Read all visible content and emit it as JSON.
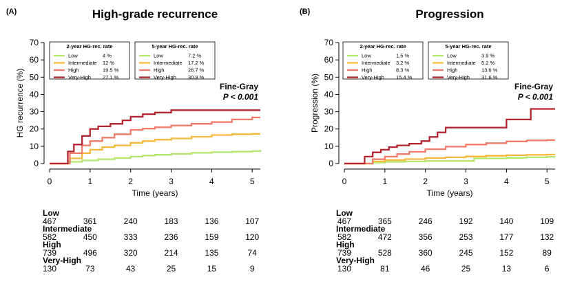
{
  "chart_data": [
    {
      "type": "line",
      "panel_label": "(A)",
      "title": "High-grade recurrence",
      "xlabel": "Time (years)",
      "ylabel": "HG recurrence (%)",
      "xlim": [
        0,
        5.2
      ],
      "ylim": [
        0,
        70
      ],
      "xticks": [
        "0",
        "1",
        "2",
        "3",
        "4",
        "5"
      ],
      "yticks": [
        "0",
        "10",
        "20",
        "30",
        "40",
        "50",
        "60",
        "70"
      ],
      "annotation": {
        "method": "Fine-Gray",
        "p_value": "P < 0.001"
      },
      "legends": [
        {
          "title": "2-year HG-rec. rate",
          "entries": [
            {
              "label": "Low",
              "value": "4 %"
            },
            {
              "label": "Intermediate",
              "value": "12 %"
            },
            {
              "label": "High",
              "value": "19.5 %"
            },
            {
              "label": "Very-High",
              "value": "27.1 %"
            }
          ]
        },
        {
          "title": "5-year HG-rec. rate",
          "entries": [
            {
              "label": "Low",
              "value": "7.2 %"
            },
            {
              "label": "Intermediate",
              "value": "17.2 %"
            },
            {
              "label": "High",
              "value": "26.7 %"
            },
            {
              "label": "Very-High",
              "value": "30.9 %"
            }
          ]
        }
      ],
      "series": [
        {
          "name": "Low",
          "color": "#b5e56b",
          "x": [
            0,
            0.3,
            0.5,
            0.8,
            1.2,
            1.6,
            2.0,
            2.3,
            2.6,
            3.0,
            3.5,
            4.0,
            4.5,
            5.0,
            5.2
          ],
          "y": [
            0,
            0,
            1,
            1.8,
            2.5,
            3.2,
            4,
            4.6,
            5.1,
            5.6,
            6.2,
            6.6,
            6.9,
            7.2,
            8
          ]
        },
        {
          "name": "Intermediate",
          "color": "#f6b83a",
          "x": [
            0,
            0.3,
            0.5,
            0.8,
            1.0,
            1.3,
            1.6,
            2.0,
            2.3,
            2.6,
            3.0,
            3.5,
            4.0,
            4.5,
            5.0,
            5.2
          ],
          "y": [
            0,
            0,
            3,
            6,
            8,
            9.5,
            10.5,
            12,
            13,
            13.8,
            14.5,
            15.5,
            16.5,
            17,
            17.2,
            17.2
          ]
        },
        {
          "name": "High",
          "color": "#ef7b68",
          "x": [
            0,
            0.25,
            0.5,
            0.8,
            1.0,
            1.3,
            1.6,
            2.0,
            2.3,
            2.6,
            3.0,
            3.5,
            4.0,
            4.5,
            5.0,
            5.2
          ],
          "y": [
            0,
            0,
            6,
            10.5,
            13,
            15,
            17,
            19.5,
            20.2,
            21,
            22,
            23,
            24,
            25.5,
            26.7,
            26.7
          ]
        },
        {
          "name": "Very-High",
          "color": "#b3252f",
          "x": [
            0,
            0.3,
            0.45,
            0.6,
            0.8,
            1.0,
            1.2,
            1.5,
            1.8,
            2.0,
            2.3,
            2.6,
            3.0,
            3.5,
            4.0,
            5.0,
            5.2
          ],
          "y": [
            0,
            0,
            7,
            11,
            16,
            20,
            21.5,
            23,
            25,
            27.1,
            28.6,
            29.5,
            30.9,
            30.9,
            30.9,
            30.9,
            30.9
          ]
        }
      ],
      "risk_table": {
        "times": [
          0,
          1,
          2,
          3,
          4,
          5
        ],
        "rows": [
          {
            "label": "Low",
            "counts": [
              "467",
              "361",
              "240",
              "183",
              "136",
              "107"
            ]
          },
          {
            "label": "Intermediate",
            "counts": [
              "582",
              "450",
              "333",
              "236",
              "159",
              "120"
            ]
          },
          {
            "label": "High",
            "counts": [
              "739",
              "496",
              "320",
              "214",
              "135",
              "74"
            ]
          },
          {
            "label": "Very-High",
            "counts": [
              "130",
              "73",
              "43",
              "25",
              "15",
              "9"
            ]
          }
        ]
      }
    },
    {
      "type": "line",
      "panel_label": "(B)",
      "title": "Progression",
      "xlabel": "Time (years)",
      "ylabel": "Progression (%)",
      "xlim": [
        0,
        5.2
      ],
      "ylim": [
        0,
        70
      ],
      "xticks": [
        "0",
        "1",
        "2",
        "3",
        "4",
        "5"
      ],
      "yticks": [
        "0",
        "10",
        "20",
        "30",
        "40",
        "50",
        "60",
        "70"
      ],
      "annotation": {
        "method": "Fine-Gray",
        "p_value": "P < 0.001"
      },
      "legends": [
        {
          "title": "2-year HG-rec. rate",
          "entries": [
            {
              "label": "Low",
              "value": "1.5 %"
            },
            {
              "label": "Intermediate",
              "value": "3.2 %"
            },
            {
              "label": "High",
              "value": "8.3 %"
            },
            {
              "label": "Very-High",
              "value": "15.4 %"
            }
          ]
        },
        {
          "title": "5-year HG-rec. rate",
          "entries": [
            {
              "label": "Low",
              "value": "3.9 %"
            },
            {
              "label": "Intermediate",
              "value": "5.2 %"
            },
            {
              "label": "High",
              "value": "13.6 %"
            },
            {
              "label": "Very-High",
              "value": "31.6 %"
            }
          ]
        }
      ],
      "series": [
        {
          "name": "Low",
          "color": "#b5e56b",
          "x": [
            0,
            0.4,
            0.7,
            1.0,
            1.5,
            2.0,
            2.5,
            3.0,
            3.2,
            3.6,
            4.0,
            4.5,
            5.0,
            5.2
          ],
          "y": [
            0,
            0,
            0.6,
            1,
            1.2,
            1.5,
            1.5,
            1.5,
            3,
            3,
            3.3,
            3.6,
            3.9,
            3.9
          ]
        },
        {
          "name": "Intermediate",
          "color": "#f6b83a",
          "x": [
            0,
            0.4,
            0.7,
            1.0,
            1.5,
            2.0,
            2.5,
            3.0,
            3.5,
            4.0,
            4.5,
            5.0,
            5.2
          ],
          "y": [
            0,
            0,
            1.2,
            2,
            2.6,
            3.2,
            3.6,
            4.1,
            4.5,
            4.8,
            5,
            5.2,
            5.2
          ]
        },
        {
          "name": "High",
          "color": "#ef7b68",
          "x": [
            0,
            0.4,
            0.7,
            1.0,
            1.3,
            1.6,
            2.0,
            2.5,
            3.0,
            3.5,
            4.0,
            4.5,
            5.0,
            5.2
          ],
          "y": [
            0,
            0,
            2.5,
            4,
            5.5,
            6.8,
            8.3,
            9.8,
            11,
            11.8,
            12.8,
            13.4,
            13.6,
            13.6
          ]
        },
        {
          "name": "Very-High",
          "color": "#b3252f",
          "x": [
            0,
            0.3,
            0.5,
            0.7,
            0.9,
            1.1,
            1.3,
            1.6,
            1.9,
            2.1,
            2.3,
            2.5,
            3.0,
            3.9,
            4.0,
            4.5,
            4.6,
            5.2
          ],
          "y": [
            0,
            0,
            4,
            6.5,
            8,
            9.5,
            10.5,
            11.5,
            13,
            15.4,
            18,
            20.8,
            20.8,
            20.8,
            25.5,
            25.5,
            31.6,
            31.6
          ]
        }
      ],
      "risk_table": {
        "times": [
          0,
          1,
          2,
          3,
          4,
          5
        ],
        "rows": [
          {
            "label": "Low",
            "counts": [
              "467",
              "365",
              "246",
              "192",
              "140",
              "109"
            ]
          },
          {
            "label": "Intermediate",
            "counts": [
              "582",
              "472",
              "356",
              "253",
              "177",
              "132"
            ]
          },
          {
            "label": "High",
            "counts": [
              "739",
              "528",
              "360",
              "245",
              "152",
              "89"
            ]
          },
          {
            "label": "Very-High",
            "counts": [
              "130",
              "81",
              "46",
              "25",
              "13",
              "6"
            ]
          }
        ]
      }
    }
  ]
}
